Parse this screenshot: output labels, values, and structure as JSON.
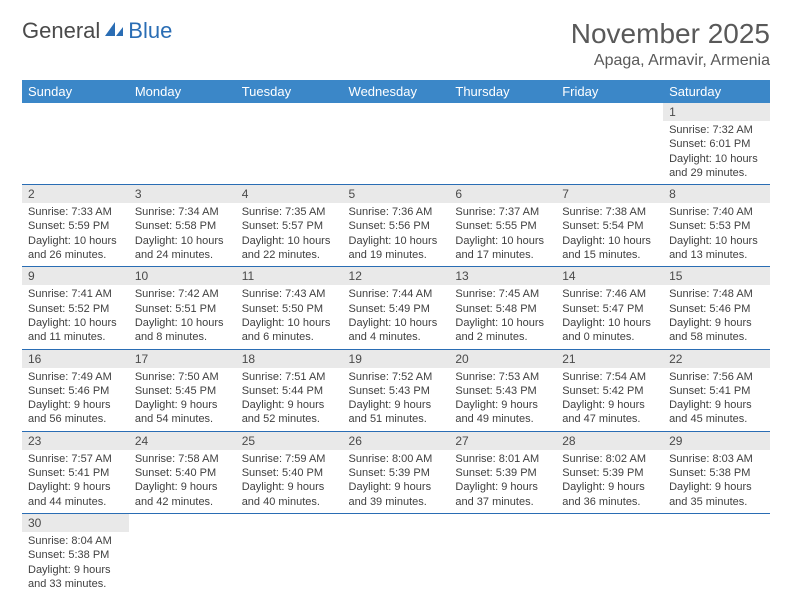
{
  "brand": {
    "part1": "General",
    "part2": "Blue"
  },
  "title": "November 2025",
  "location": "Apaga, Armavir, Armenia",
  "colors": {
    "header_bg": "#3b87c8",
    "header_text": "#ffffff",
    "daynum_bg": "#e9e9e9",
    "border": "#2a6db4",
    "text": "#404040",
    "title_color": "#595959"
  },
  "day_headers": [
    "Sunday",
    "Monday",
    "Tuesday",
    "Wednesday",
    "Thursday",
    "Friday",
    "Saturday"
  ],
  "weeks": [
    [
      null,
      null,
      null,
      null,
      null,
      null,
      {
        "n": "1",
        "sr": "Sunrise: 7:32 AM",
        "ss": "Sunset: 6:01 PM",
        "d1": "Daylight: 10 hours",
        "d2": "and 29 minutes."
      }
    ],
    [
      {
        "n": "2",
        "sr": "Sunrise: 7:33 AM",
        "ss": "Sunset: 5:59 PM",
        "d1": "Daylight: 10 hours",
        "d2": "and 26 minutes."
      },
      {
        "n": "3",
        "sr": "Sunrise: 7:34 AM",
        "ss": "Sunset: 5:58 PM",
        "d1": "Daylight: 10 hours",
        "d2": "and 24 minutes."
      },
      {
        "n": "4",
        "sr": "Sunrise: 7:35 AM",
        "ss": "Sunset: 5:57 PM",
        "d1": "Daylight: 10 hours",
        "d2": "and 22 minutes."
      },
      {
        "n": "5",
        "sr": "Sunrise: 7:36 AM",
        "ss": "Sunset: 5:56 PM",
        "d1": "Daylight: 10 hours",
        "d2": "and 19 minutes."
      },
      {
        "n": "6",
        "sr": "Sunrise: 7:37 AM",
        "ss": "Sunset: 5:55 PM",
        "d1": "Daylight: 10 hours",
        "d2": "and 17 minutes."
      },
      {
        "n": "7",
        "sr": "Sunrise: 7:38 AM",
        "ss": "Sunset: 5:54 PM",
        "d1": "Daylight: 10 hours",
        "d2": "and 15 minutes."
      },
      {
        "n": "8",
        "sr": "Sunrise: 7:40 AM",
        "ss": "Sunset: 5:53 PM",
        "d1": "Daylight: 10 hours",
        "d2": "and 13 minutes."
      }
    ],
    [
      {
        "n": "9",
        "sr": "Sunrise: 7:41 AM",
        "ss": "Sunset: 5:52 PM",
        "d1": "Daylight: 10 hours",
        "d2": "and 11 minutes."
      },
      {
        "n": "10",
        "sr": "Sunrise: 7:42 AM",
        "ss": "Sunset: 5:51 PM",
        "d1": "Daylight: 10 hours",
        "d2": "and 8 minutes."
      },
      {
        "n": "11",
        "sr": "Sunrise: 7:43 AM",
        "ss": "Sunset: 5:50 PM",
        "d1": "Daylight: 10 hours",
        "d2": "and 6 minutes."
      },
      {
        "n": "12",
        "sr": "Sunrise: 7:44 AM",
        "ss": "Sunset: 5:49 PM",
        "d1": "Daylight: 10 hours",
        "d2": "and 4 minutes."
      },
      {
        "n": "13",
        "sr": "Sunrise: 7:45 AM",
        "ss": "Sunset: 5:48 PM",
        "d1": "Daylight: 10 hours",
        "d2": "and 2 minutes."
      },
      {
        "n": "14",
        "sr": "Sunrise: 7:46 AM",
        "ss": "Sunset: 5:47 PM",
        "d1": "Daylight: 10 hours",
        "d2": "and 0 minutes."
      },
      {
        "n": "15",
        "sr": "Sunrise: 7:48 AM",
        "ss": "Sunset: 5:46 PM",
        "d1": "Daylight: 9 hours",
        "d2": "and 58 minutes."
      }
    ],
    [
      {
        "n": "16",
        "sr": "Sunrise: 7:49 AM",
        "ss": "Sunset: 5:46 PM",
        "d1": "Daylight: 9 hours",
        "d2": "and 56 minutes."
      },
      {
        "n": "17",
        "sr": "Sunrise: 7:50 AM",
        "ss": "Sunset: 5:45 PM",
        "d1": "Daylight: 9 hours",
        "d2": "and 54 minutes."
      },
      {
        "n": "18",
        "sr": "Sunrise: 7:51 AM",
        "ss": "Sunset: 5:44 PM",
        "d1": "Daylight: 9 hours",
        "d2": "and 52 minutes."
      },
      {
        "n": "19",
        "sr": "Sunrise: 7:52 AM",
        "ss": "Sunset: 5:43 PM",
        "d1": "Daylight: 9 hours",
        "d2": "and 51 minutes."
      },
      {
        "n": "20",
        "sr": "Sunrise: 7:53 AM",
        "ss": "Sunset: 5:43 PM",
        "d1": "Daylight: 9 hours",
        "d2": "and 49 minutes."
      },
      {
        "n": "21",
        "sr": "Sunrise: 7:54 AM",
        "ss": "Sunset: 5:42 PM",
        "d1": "Daylight: 9 hours",
        "d2": "and 47 minutes."
      },
      {
        "n": "22",
        "sr": "Sunrise: 7:56 AM",
        "ss": "Sunset: 5:41 PM",
        "d1": "Daylight: 9 hours",
        "d2": "and 45 minutes."
      }
    ],
    [
      {
        "n": "23",
        "sr": "Sunrise: 7:57 AM",
        "ss": "Sunset: 5:41 PM",
        "d1": "Daylight: 9 hours",
        "d2": "and 44 minutes."
      },
      {
        "n": "24",
        "sr": "Sunrise: 7:58 AM",
        "ss": "Sunset: 5:40 PM",
        "d1": "Daylight: 9 hours",
        "d2": "and 42 minutes."
      },
      {
        "n": "25",
        "sr": "Sunrise: 7:59 AM",
        "ss": "Sunset: 5:40 PM",
        "d1": "Daylight: 9 hours",
        "d2": "and 40 minutes."
      },
      {
        "n": "26",
        "sr": "Sunrise: 8:00 AM",
        "ss": "Sunset: 5:39 PM",
        "d1": "Daylight: 9 hours",
        "d2": "and 39 minutes."
      },
      {
        "n": "27",
        "sr": "Sunrise: 8:01 AM",
        "ss": "Sunset: 5:39 PM",
        "d1": "Daylight: 9 hours",
        "d2": "and 37 minutes."
      },
      {
        "n": "28",
        "sr": "Sunrise: 8:02 AM",
        "ss": "Sunset: 5:39 PM",
        "d1": "Daylight: 9 hours",
        "d2": "and 36 minutes."
      },
      {
        "n": "29",
        "sr": "Sunrise: 8:03 AM",
        "ss": "Sunset: 5:38 PM",
        "d1": "Daylight: 9 hours",
        "d2": "and 35 minutes."
      }
    ],
    [
      {
        "n": "30",
        "sr": "Sunrise: 8:04 AM",
        "ss": "Sunset: 5:38 PM",
        "d1": "Daylight: 9 hours",
        "d2": "and 33 minutes."
      },
      null,
      null,
      null,
      null,
      null,
      null
    ]
  ]
}
